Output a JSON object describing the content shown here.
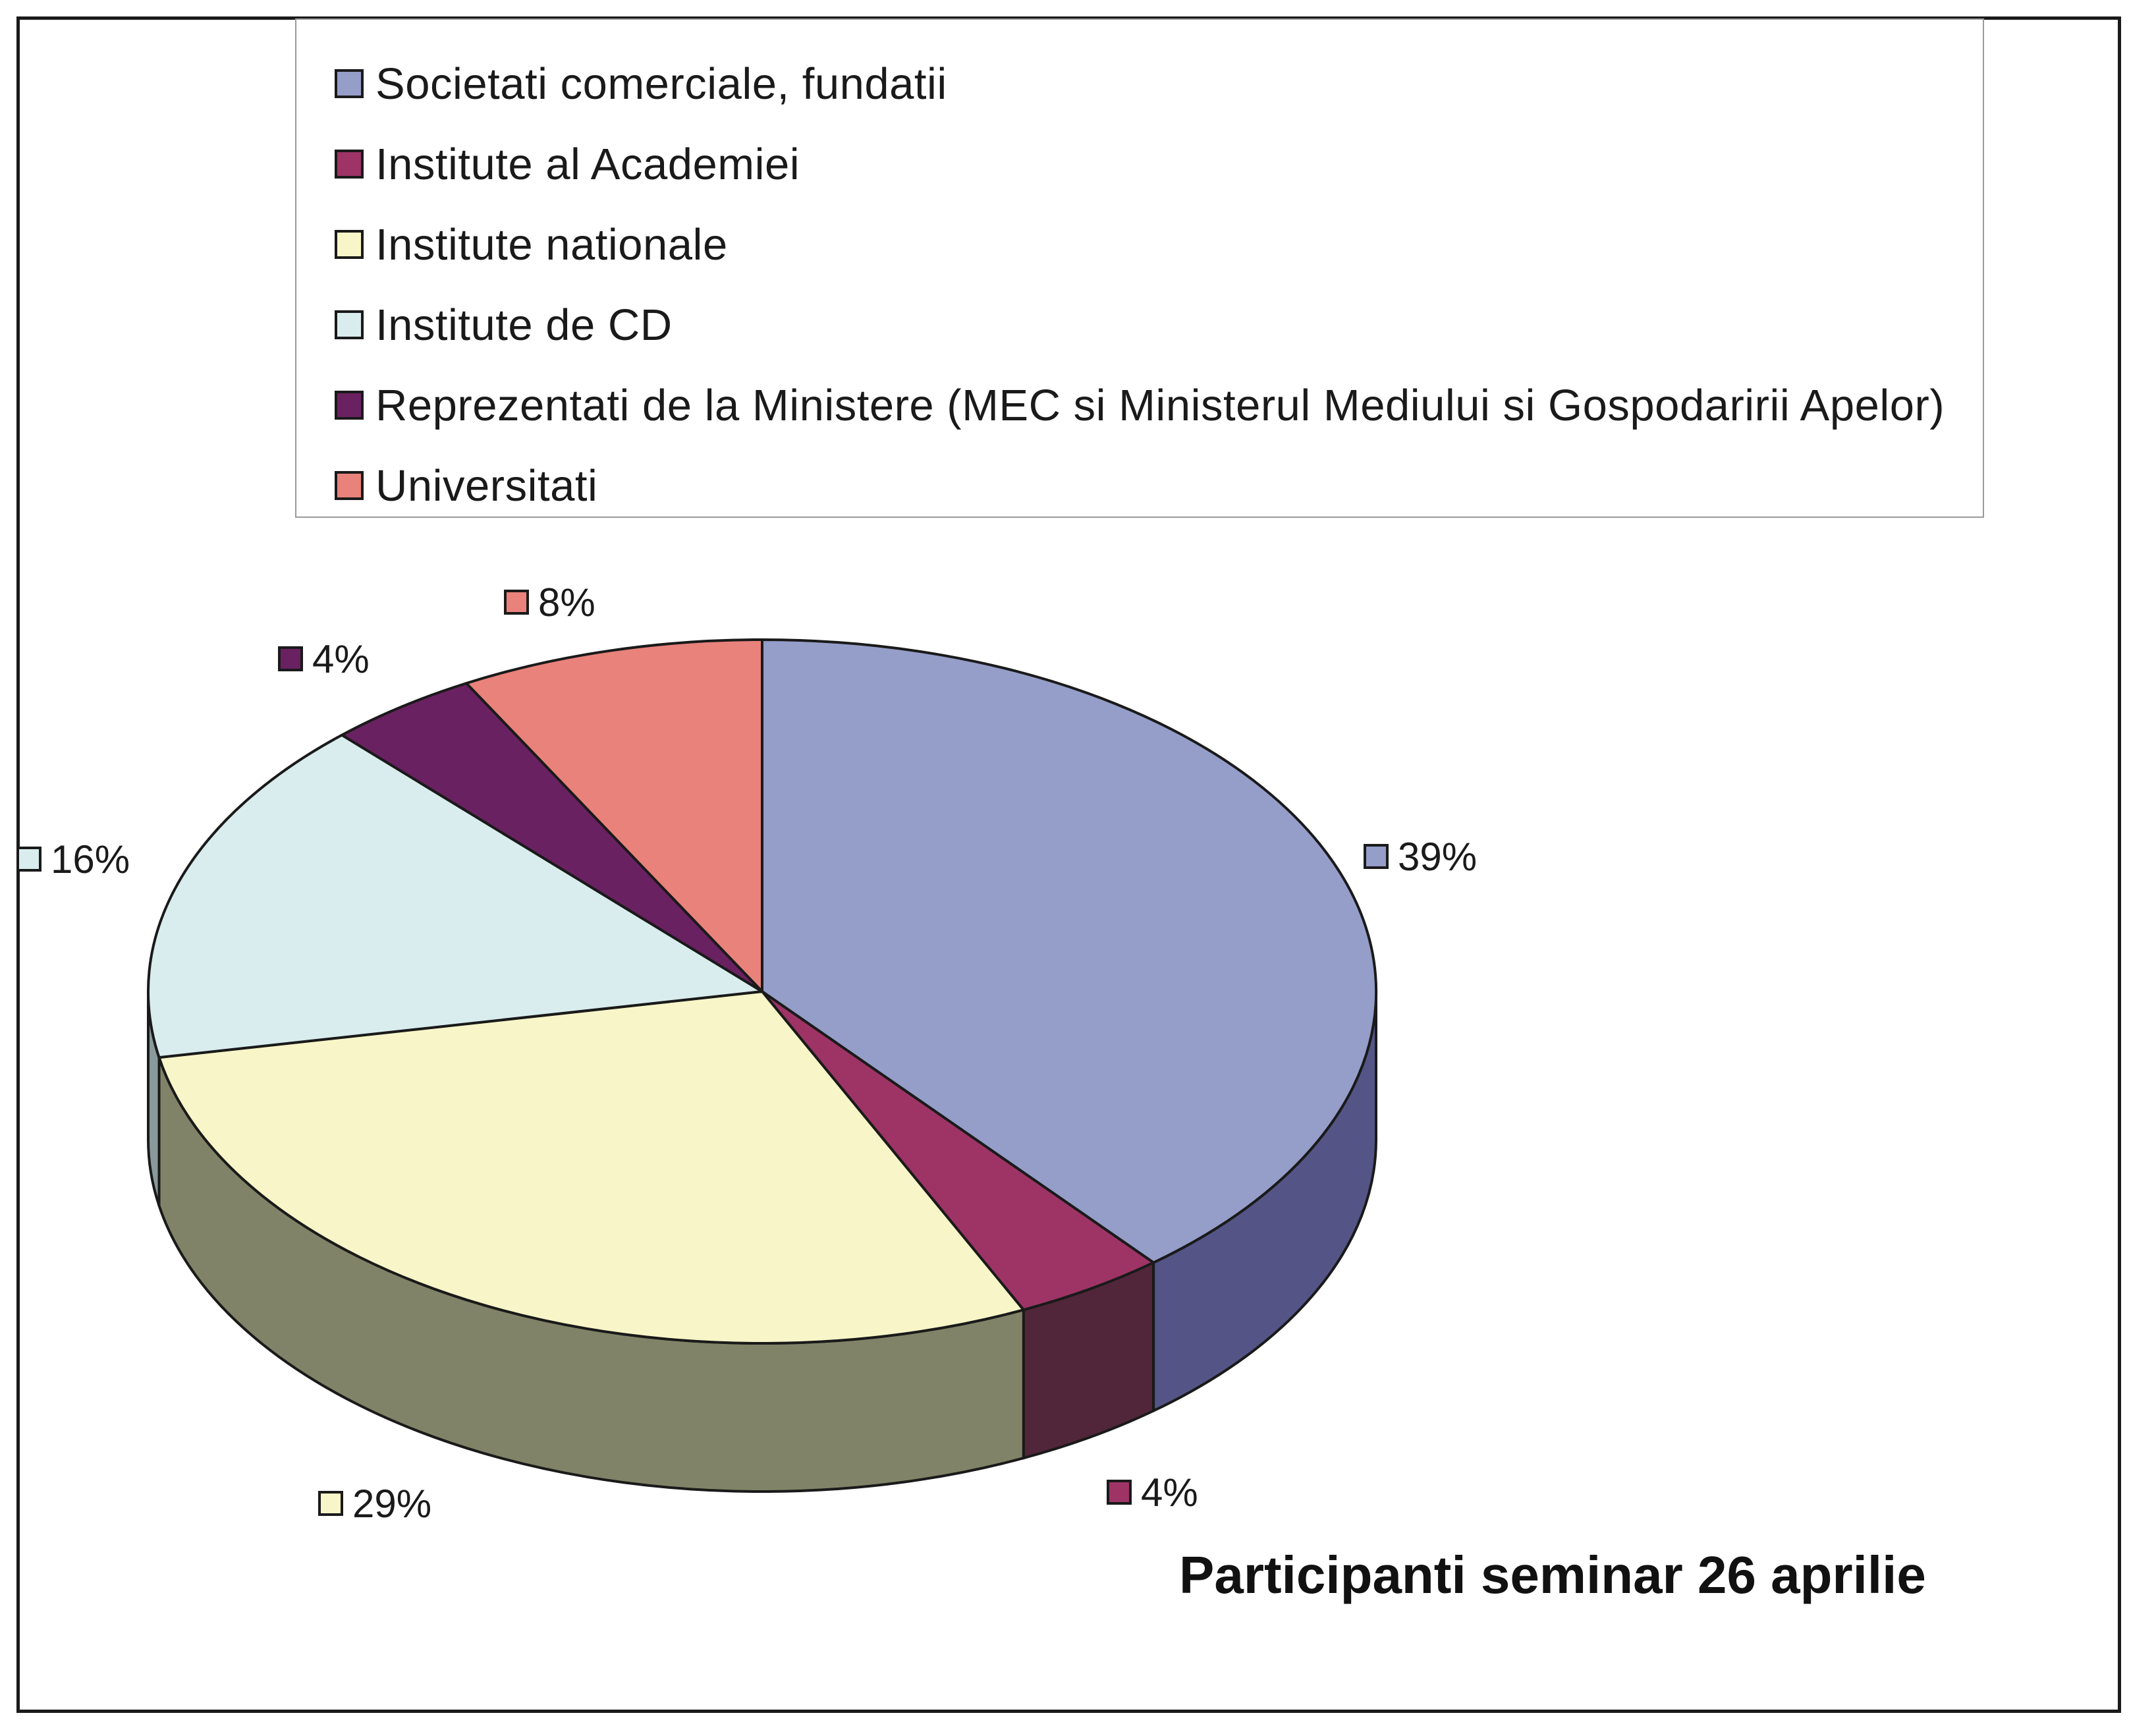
{
  "chart_data": {
    "type": "pie",
    "style": "3d",
    "title": "Participanti seminar 26 aprilie",
    "categories": [
      "Societati comerciale, fundatii",
      "Institute al Academiei",
      "Institute nationale",
      "Institute de CD",
      "Reprezentati de la Ministere (MEC si Ministerul Mediului si Gospodaririi Apelor)",
      "Universitati"
    ],
    "values": [
      39,
      4,
      29,
      16,
      4,
      8
    ],
    "value_labels": [
      "39%",
      "4%",
      "29%",
      "16%",
      "4%",
      "8%"
    ],
    "colors": [
      "#959dc9",
      "#9e3466",
      "#f8f6c8",
      "#d9ecee",
      "#6a2161",
      "#e8827b"
    ],
    "side_colors": [
      "#545586",
      "#52263a",
      "#808367",
      "#8a9a9c",
      "#3d1038",
      "#9a5450"
    ],
    "legend_position": "top",
    "unit": "%"
  }
}
